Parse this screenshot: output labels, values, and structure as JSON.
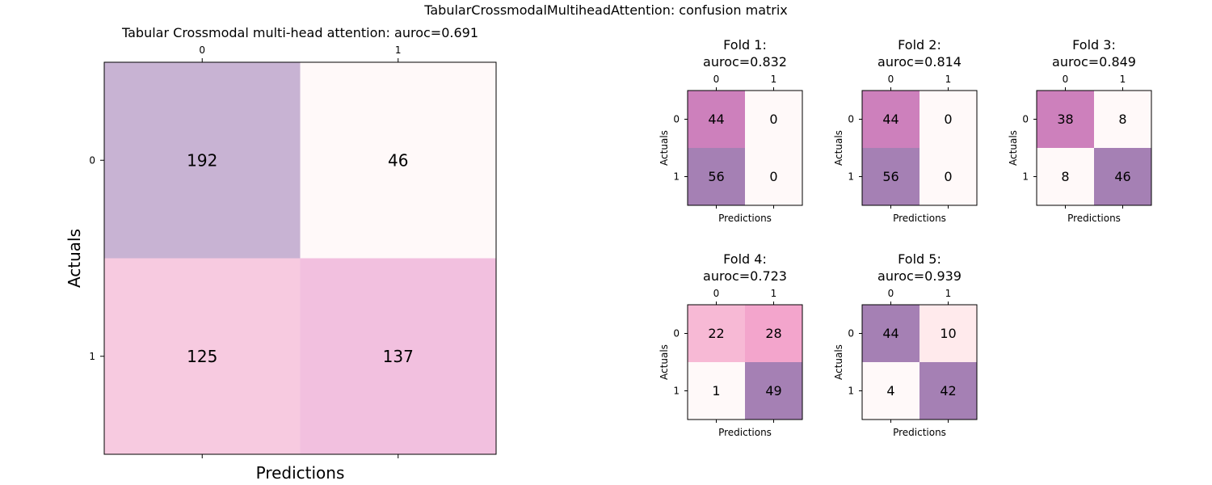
{
  "figure": {
    "suptitle": "TabularCrossmodalMultiheadAttention: confusion matrix"
  },
  "colors": {
    "background": "#ffffff",
    "cell_text": "#000000",
    "axis": "#000000"
  },
  "chart_data": [
    {
      "type": "heatmap",
      "id": "overall",
      "title": "Tabular Crossmodal multi-head attention: auroc=0.691",
      "xlabel": "Predictions",
      "ylabel": "Actuals",
      "x_ticks": [
        "0",
        "1"
      ],
      "y_ticks": [
        "0",
        "1"
      ],
      "matrix": [
        [
          192,
          46
        ],
        [
          125,
          137
        ]
      ],
      "cell_colors": [
        [
          "#c8b3d3",
          "#fff9f9"
        ],
        [
          "#f7cae0",
          "#f2c0df"
        ]
      ]
    },
    {
      "type": "heatmap",
      "id": "fold-1",
      "title": "Fold 1:\nauroc=0.832",
      "xlabel": "Predictions",
      "ylabel": "Actuals",
      "x_ticks": [
        "0",
        "1"
      ],
      "y_ticks": [
        "0",
        "1"
      ],
      "matrix": [
        [
          44,
          0
        ],
        [
          56,
          0
        ]
      ],
      "cell_colors": [
        [
          "#cd80bc",
          "#fff9f9"
        ],
        [
          "#a580b4",
          "#fff9f9"
        ]
      ]
    },
    {
      "type": "heatmap",
      "id": "fold-2",
      "title": "Fold 2:\nauroc=0.814",
      "xlabel": "Predictions",
      "ylabel": "Actuals",
      "x_ticks": [
        "0",
        "1"
      ],
      "y_ticks": [
        "0",
        "1"
      ],
      "matrix": [
        [
          44,
          0
        ],
        [
          56,
          0
        ]
      ],
      "cell_colors": [
        [
          "#cd80bc",
          "#fff9f9"
        ],
        [
          "#a580b4",
          "#fff9f9"
        ]
      ]
    },
    {
      "type": "heatmap",
      "id": "fold-3",
      "title": "Fold 3:\nauroc=0.849",
      "xlabel": "Predictions",
      "ylabel": "Actuals",
      "x_ticks": [
        "0",
        "1"
      ],
      "y_ticks": [
        "0",
        "1"
      ],
      "matrix": [
        [
          38,
          8
        ],
        [
          8,
          46
        ]
      ],
      "cell_colors": [
        [
          "#cd80bc",
          "#fff9f9"
        ],
        [
          "#fff9f9",
          "#a580b4"
        ]
      ]
    },
    {
      "type": "heatmap",
      "id": "fold-4",
      "title": "Fold 4:\nauroc=0.723",
      "xlabel": "Predictions",
      "ylabel": "Actuals",
      "x_ticks": [
        "0",
        "1"
      ],
      "y_ticks": [
        "0",
        "1"
      ],
      "matrix": [
        [
          22,
          28
        ],
        [
          1,
          49
        ]
      ],
      "cell_colors": [
        [
          "#f7b9d5",
          "#f3a5cc"
        ],
        [
          "#fff9f9",
          "#a580b4"
        ]
      ]
    },
    {
      "type": "heatmap",
      "id": "fold-5",
      "title": "Fold 5:\nauroc=0.939",
      "xlabel": "Predictions",
      "ylabel": "Actuals",
      "x_ticks": [
        "0",
        "1"
      ],
      "y_ticks": [
        "0",
        "1"
      ],
      "matrix": [
        [
          44,
          10
        ],
        [
          4,
          42
        ]
      ],
      "cell_colors": [
        [
          "#a580b4",
          "#ffeaec"
        ],
        [
          "#fff9f9",
          "#a580b4"
        ]
      ]
    }
  ]
}
